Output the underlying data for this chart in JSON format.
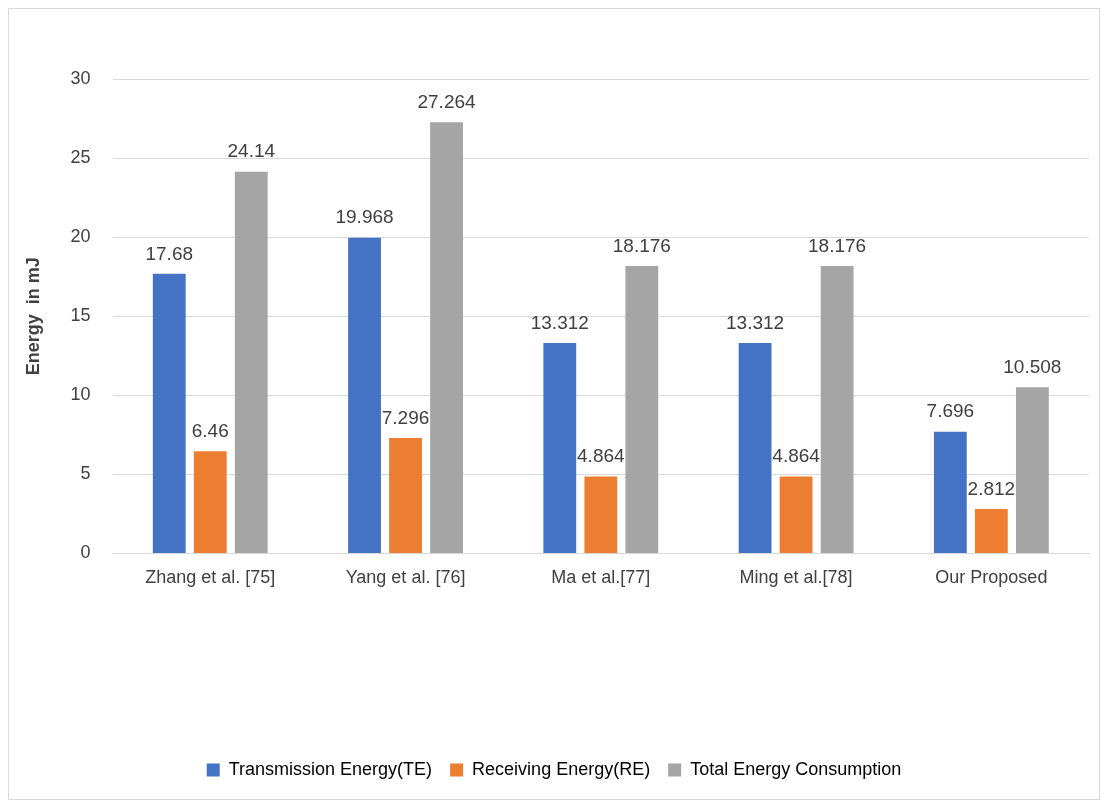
{
  "chart_data": {
    "type": "bar",
    "ylabel": "Energy  in mJ",
    "categories": [
      "Zhang et al. [75]",
      "Yang et al. [76]",
      "Ma et al.[77]",
      "Ming et al.[78]",
      "Our Proposed"
    ],
    "series": [
      {
        "name": "Transmission Energy(TE)",
        "color": "#4472c4",
        "values": [
          17.68,
          19.968,
          13.312,
          13.312,
          7.696
        ]
      },
      {
        "name": "Receiving Energy(RE)",
        "color": "#ed7d31",
        "values": [
          6.46,
          7.296,
          4.864,
          4.864,
          2.812
        ]
      },
      {
        "name": "Total Energy Consumption",
        "color": "#a5a5a5",
        "values": [
          24.14,
          27.264,
          18.176,
          18.176,
          10.508
        ]
      }
    ],
    "ylim": [
      0,
      30
    ],
    "yticks": [
      0,
      5,
      10,
      15,
      20,
      25,
      30
    ],
    "grid": "y",
    "legend": "bottom",
    "data_labels": true
  }
}
